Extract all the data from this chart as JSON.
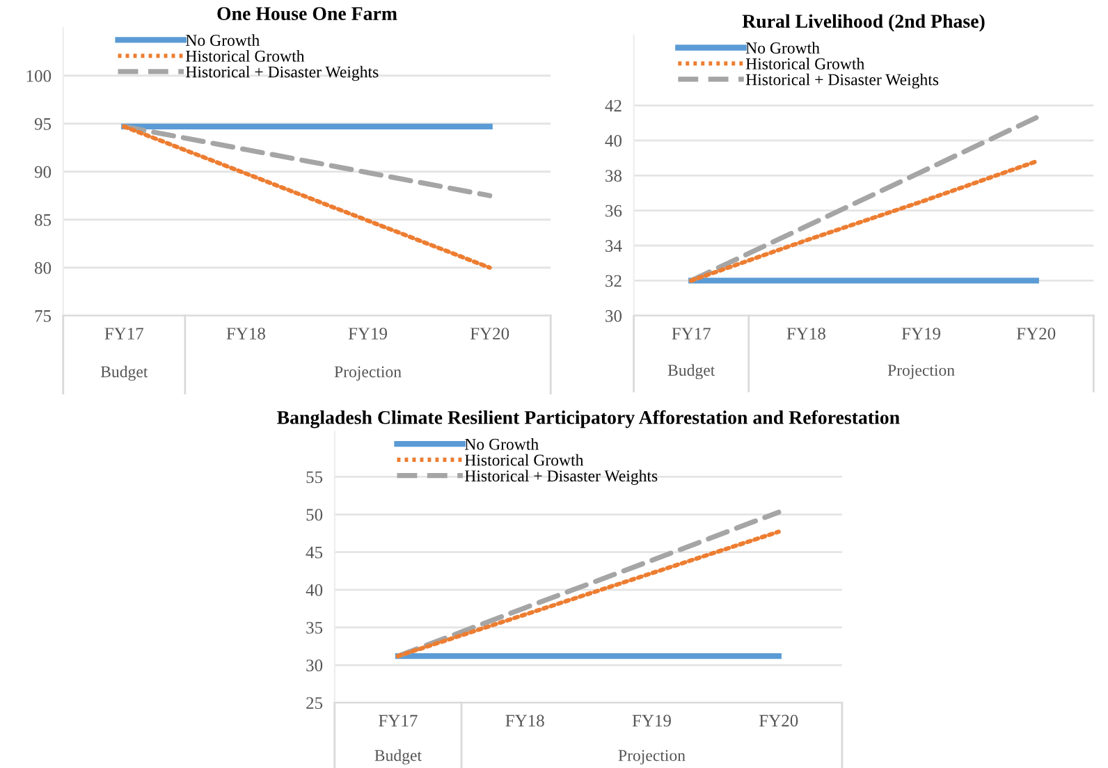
{
  "chart_data": [
    {
      "type": "line",
      "title": "One House One Farm",
      "categories": [
        "FY17",
        "FY18",
        "FY19",
        "FY20"
      ],
      "ylim": [
        75,
        105
      ],
      "yticks": [
        75,
        80,
        85,
        90,
        95,
        100
      ],
      "grid": "y",
      "legend": "top",
      "annotations": [
        "Budget",
        "Projection"
      ],
      "series": [
        {
          "name": "No Growth",
          "color": "#5b9bd5",
          "line_style": "solid",
          "values": [
            94.7,
            94.7,
            94.7,
            94.7
          ]
        },
        {
          "name": "Historical Growth",
          "color": "#ed7d31",
          "line_style": "dotted",
          "values": [
            94.7,
            89.8,
            84.9,
            80.0
          ]
        },
        {
          "name": "Historical + Disaster Weights",
          "color": "#a5a5a5",
          "line_style": "dashed",
          "values": [
            94.7,
            92.3,
            89.9,
            87.5
          ]
        }
      ]
    },
    {
      "type": "line",
      "title": "Rural Livelihood (2nd Phase)",
      "categories": [
        "FY17",
        "FY18",
        "FY19",
        "FY20"
      ],
      "ylim": [
        30,
        46
      ],
      "yticks": [
        30,
        32,
        34,
        36,
        38,
        40,
        42
      ],
      "grid": "y",
      "legend": "top",
      "annotations": [
        "Budget",
        "Projection"
      ],
      "series": [
        {
          "name": "No Growth",
          "color": "#5b9bd5",
          "line_style": "solid",
          "values": [
            32,
            32,
            32,
            32
          ]
        },
        {
          "name": "Historical Growth",
          "color": "#ed7d31",
          "line_style": "dotted",
          "values": [
            32,
            34.3,
            36.5,
            38.8
          ]
        },
        {
          "name": "Historical + Disaster Weights",
          "color": "#a5a5a5",
          "line_style": "dashed",
          "values": [
            32,
            35.1,
            38.2,
            41.3
          ]
        }
      ]
    },
    {
      "type": "line",
      "title": "Bangladesh Climate Resilient Participatory Afforestation and Reforestation",
      "categories": [
        "FY17",
        "FY18",
        "FY19",
        "FY20"
      ],
      "ylim": [
        25,
        61
      ],
      "yticks": [
        25,
        30,
        35,
        40,
        45,
        50,
        55
      ],
      "grid": "y",
      "legend": "top",
      "annotations": [
        "Budget",
        "Projection"
      ],
      "series": [
        {
          "name": "No Growth",
          "color": "#5b9bd5",
          "line_style": "solid",
          "values": [
            31.2,
            31.2,
            31.2,
            31.2
          ]
        },
        {
          "name": "Historical Growth",
          "color": "#ed7d31",
          "line_style": "dotted",
          "values": [
            31.2,
            36.7,
            42.2,
            47.7
          ]
        },
        {
          "name": "Historical + Disaster Weights",
          "color": "#a5a5a5",
          "line_style": "dashed",
          "values": [
            31.2,
            37.6,
            43.9,
            50.3
          ]
        }
      ]
    }
  ]
}
